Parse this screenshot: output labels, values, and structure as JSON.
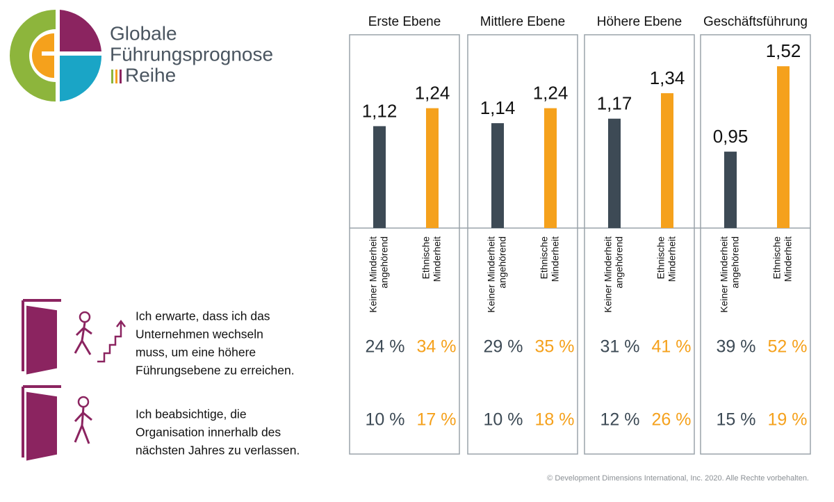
{
  "logo": {
    "lines": [
      "Globale",
      "Führungsprognose",
      "Reihe"
    ]
  },
  "chart_data": [
    {
      "type": "bar",
      "title": "Erste Ebene",
      "categories": [
        [
          "Keiner Minderheit",
          "angehörend"
        ],
        [
          "Ethnische",
          "Minderheit"
        ]
      ],
      "values": [
        1.12,
        1.24
      ],
      "value_labels": [
        "1,12",
        "1,24"
      ],
      "colors": [
        "#3d4a55",
        "#f5a11c"
      ],
      "ylim": [
        0.44,
        1.73
      ]
    },
    {
      "type": "bar",
      "title": "Mittlere Ebene",
      "categories": [
        [
          "Keiner Minderheit",
          "angehörend"
        ],
        [
          "Ethnische",
          "Minderheit"
        ]
      ],
      "values": [
        1.14,
        1.24
      ],
      "value_labels": [
        "1,14",
        "1,24"
      ],
      "colors": [
        "#3d4a55",
        "#f5a11c"
      ],
      "ylim": [
        0.44,
        1.73
      ]
    },
    {
      "type": "bar",
      "title": "Höhere Ebene",
      "categories": [
        [
          "Keiner Minderheit",
          "angehörend"
        ],
        [
          "Ethnische",
          "Minderheit"
        ]
      ],
      "values": [
        1.17,
        1.34
      ],
      "value_labels": [
        "1,17",
        "1,34"
      ],
      "colors": [
        "#3d4a55",
        "#f5a11c"
      ],
      "ylim": [
        0.44,
        1.73
      ]
    },
    {
      "type": "bar",
      "title": "Geschäftsführung",
      "categories": [
        [
          "Keiner Minderheit",
          "angehörend"
        ],
        [
          "Ethnische",
          "Minderheit"
        ]
      ],
      "values": [
        0.95,
        1.52
      ],
      "value_labels": [
        "0,95",
        "1,52"
      ],
      "colors": [
        "#3d4a55",
        "#f5a11c"
      ],
      "ylim": [
        0.44,
        1.73
      ]
    }
  ],
  "rows": [
    {
      "label": [
        "Ich erwarte, dass ich das",
        "Unternehmen wechseln",
        "muss, um eine höhere",
        "Führungsebene zu erreichen."
      ],
      "values": [
        [
          24,
          34
        ],
        [
          29,
          35
        ],
        [
          31,
          41
        ],
        [
          39,
          52
        ]
      ],
      "value_labels": [
        [
          "24 %",
          "34 %"
        ],
        [
          "29 %",
          "35 %"
        ],
        [
          "31 %",
          "41 %"
        ],
        [
          "39 %",
          "52 %"
        ]
      ]
    },
    {
      "label": [
        "Ich beabsichtige, die",
        "Organisation innerhalb des",
        "nächsten Jahres zu verlassen."
      ],
      "values": [
        [
          10,
          17
        ],
        [
          10,
          18
        ],
        [
          12,
          26
        ],
        [
          15,
          19
        ]
      ],
      "value_labels": [
        [
          "10 %",
          "17 %"
        ],
        [
          "10 %",
          "18 %"
        ],
        [
          "12 %",
          "26 %"
        ],
        [
          "15 %",
          "19 %"
        ]
      ]
    }
  ],
  "footer": "© Development Dimensions International, Inc. 2020. Alle Rechte vorbehalten."
}
